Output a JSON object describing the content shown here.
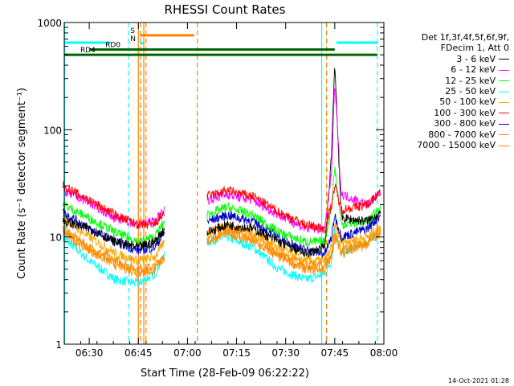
{
  "chart_data": {
    "type": "line",
    "title": "RHESSI Count Rates",
    "xlabel": "Start Time (28-Feb-09 06:22:22)",
    "ylabel": "Count Rate (s⁻¹ detector segment⁻¹)",
    "yscale": "log",
    "xlim": [
      "06:22:22",
      "08:00:00"
    ],
    "ylim": [
      1,
      1000
    ],
    "x_ticks": [
      "06:30",
      "06:45",
      "07:00",
      "07:15",
      "07:30",
      "07:45",
      "08:00"
    ],
    "y_ticks": [
      "1",
      "10",
      "100",
      "1000"
    ],
    "grid": false,
    "legend_position": "right",
    "legend_header": [
      "Det 1f,3f,4f,5f,6f,9f,",
      "FDecim 1, Att 0"
    ],
    "data_gap": [
      "06:53",
      "07:06"
    ],
    "series": [
      {
        "name": "3 - 6 keV",
        "color": "#000000",
        "x": [
          "06:22",
          "06:30",
          "06:38",
          "06:45",
          "06:50",
          "06:53",
          "07:06",
          "07:12",
          "07:20",
          "07:28",
          "07:36",
          "07:42",
          "07:44",
          "07:45",
          "07:47",
          "07:55",
          "07:59"
        ],
        "values": [
          14,
          12,
          9,
          8,
          9,
          12,
          11,
          13,
          12,
          9,
          7,
          8,
          60,
          430,
          15,
          14,
          17
        ]
      },
      {
        "name": "6 - 12 keV",
        "color": "#ff00ff",
        "x": [
          "06:22",
          "06:30",
          "06:38",
          "06:45",
          "06:50",
          "06:53",
          "07:06",
          "07:12",
          "07:20",
          "07:28",
          "07:36",
          "07:42",
          "07:44",
          "07:45",
          "07:47",
          "07:55",
          "07:59"
        ],
        "values": [
          27,
          21,
          15,
          13,
          14,
          18,
          22,
          25,
          22,
          16,
          12,
          12,
          40,
          270,
          25,
          20,
          26
        ]
      },
      {
        "name": "12 - 25 keV",
        "color": "#00ff00",
        "x": [
          "06:22",
          "06:30",
          "06:38",
          "06:45",
          "06:50",
          "06:53",
          "07:06",
          "07:12",
          "07:20",
          "07:28",
          "07:36",
          "07:42",
          "07:44",
          "07:45",
          "07:47",
          "07:55",
          "07:59"
        ],
        "values": [
          20,
          15,
          11,
          9,
          10,
          14,
          16,
          19,
          16,
          11,
          9,
          9,
          20,
          45,
          13,
          14,
          19
        ]
      },
      {
        "name": "25 - 50 keV",
        "color": "#00ffff",
        "x": [
          "06:22",
          "06:30",
          "06:38",
          "06:45",
          "06:50",
          "06:53",
          "07:06",
          "07:12",
          "07:20",
          "07:28",
          "07:36",
          "07:42",
          "07:44",
          "07:45",
          "07:47",
          "07:55",
          "07:59"
        ],
        "values": [
          10,
          6,
          4,
          3.7,
          4.5,
          7,
          9,
          10,
          8,
          5,
          4,
          4.5,
          6,
          12,
          7,
          9,
          11
        ]
      },
      {
        "name": "50 - 100 keV",
        "color": "#ffa500",
        "x": [
          "06:22",
          "06:30",
          "06:38",
          "06:45",
          "06:50",
          "06:53",
          "07:06",
          "07:12",
          "07:20",
          "07:28",
          "07:36",
          "07:42",
          "07:44",
          "07:45",
          "07:47",
          "07:55",
          "07:59"
        ],
        "values": [
          15,
          10,
          7,
          6,
          6.5,
          9,
          11,
          13,
          11,
          8,
          6,
          6,
          8,
          13,
          9,
          10,
          13
        ]
      },
      {
        "name": "100 - 300 keV",
        "color": "#ff0000",
        "x": [
          "06:22",
          "06:30",
          "06:38",
          "06:45",
          "06:50",
          "06:53",
          "07:06",
          "07:12",
          "07:20",
          "07:28",
          "07:36",
          "07:42",
          "07:44",
          "07:45",
          "07:47",
          "07:55",
          "07:59"
        ],
        "values": [
          30,
          22,
          16,
          13,
          13,
          17,
          24,
          27,
          24,
          17,
          13,
          12,
          20,
          30,
          18,
          20,
          27
        ]
      },
      {
        "name": "300 - 800 keV",
        "color": "#0000cc",
        "x": [
          "06:22",
          "06:30",
          "06:38",
          "06:45",
          "06:50",
          "06:53",
          "07:06",
          "07:12",
          "07:20",
          "07:28",
          "07:36",
          "07:42",
          "07:44",
          "07:45",
          "07:47",
          "07:55",
          "07:59"
        ],
        "values": [
          17,
          12,
          9,
          7.5,
          8,
          11,
          14,
          16,
          14,
          10,
          7.5,
          7,
          10,
          16,
          10,
          12,
          16
        ]
      },
      {
        "name": "800 - 7000 keV",
        "color": "#ff8c00",
        "x": [
          "06:22",
          "06:30",
          "06:38",
          "06:45",
          "06:50",
          "06:53",
          "07:06",
          "07:12",
          "07:20",
          "07:28",
          "07:36",
          "07:42",
          "07:44",
          "07:45",
          "07:47",
          "07:55",
          "07:59"
        ],
        "values": [
          12,
          8,
          6,
          5,
          5.3,
          7,
          10,
          12,
          10,
          7,
          5.5,
          5.5,
          7,
          11,
          7.5,
          9,
          12
        ]
      },
      {
        "name": "7000 - 15000 keV",
        "color": "#ff8c00",
        "x": [
          "06:22",
          "06:30",
          "06:38",
          "06:45",
          "06:50",
          "06:53",
          "07:06",
          "07:12",
          "07:20",
          "07:28",
          "07:36",
          "07:42",
          "07:44",
          "07:45",
          "07:47",
          "07:55",
          "07:59"
        ],
        "values": [
          11,
          7.5,
          5.5,
          4.6,
          4.9,
          6.5,
          9,
          11,
          9,
          6.5,
          5,
          5,
          6.5,
          10,
          7,
          8.5,
          11
        ]
      }
    ],
    "flag_bars": [
      {
        "label": "",
        "color": "#00ffff",
        "y": 650,
        "from": "06:22:22",
        "to": "06:36:30"
      },
      {
        "label": "",
        "color": "#00ffff",
        "y": 650,
        "from": "07:45:30",
        "to": "07:58:00"
      },
      {
        "label": "S",
        "color": "#ff8000",
        "y": 760,
        "from": "06:45:30",
        "to": "07:02:00"
      },
      {
        "label": "N",
        "color": "#00ffff",
        "y": 640,
        "from": "06:45:30",
        "to": "06:46:30"
      },
      {
        "label": "RD0",
        "color": "#006400",
        "y": 560,
        "from": "06:30:00",
        "to": "07:45:00"
      },
      {
        "label": "RD4",
        "color": "#006400",
        "y": 500,
        "from": "06:22:22",
        "to": "07:58:00"
      }
    ],
    "vlines": [
      {
        "t": "06:22:30",
        "color": "#00ffff",
        "style": "solid"
      },
      {
        "t": "06:42:00",
        "color": "#00ffff",
        "style": "dashed"
      },
      {
        "t": "06:45:00",
        "color": "#ff8000",
        "style": "solid"
      },
      {
        "t": "06:45:40",
        "color": "#ff8000",
        "style": "dashed"
      },
      {
        "t": "06:46:40",
        "color": "#ff8000",
        "style": "solid"
      },
      {
        "t": "06:47:20",
        "color": "#ff8000",
        "style": "dashed"
      },
      {
        "t": "07:03:00",
        "color": "#ff8000",
        "style": "dashed"
      },
      {
        "t": "07:41:00",
        "color": "#00ffff",
        "style": "solid"
      },
      {
        "t": "07:42:30",
        "color": "#ff8000",
        "style": "dashed"
      },
      {
        "t": "07:58:00",
        "color": "#00ffff",
        "style": "dashed"
      }
    ]
  },
  "footer": {
    "timestamp": "14-Oct-2021 01:28"
  }
}
